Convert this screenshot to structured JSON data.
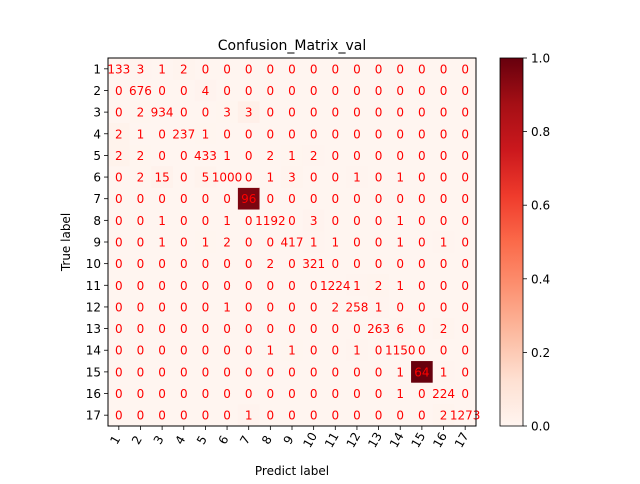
{
  "chart_data": {
    "type": "heatmap",
    "title": "Confusion_Matrix_val",
    "xlabel": "Predict label",
    "ylabel": "True label",
    "labels": [
      "1",
      "2",
      "3",
      "4",
      "5",
      "6",
      "7",
      "8",
      "9",
      "10",
      "11",
      "12",
      "13",
      "14",
      "15",
      "16",
      "17"
    ],
    "matrix": [
      [
        133,
        3,
        1,
        2,
        0,
        0,
        0,
        0,
        0,
        0,
        0,
        0,
        0,
        0,
        0,
        0,
        0
      ],
      [
        0,
        676,
        0,
        0,
        4,
        0,
        0,
        0,
        0,
        0,
        0,
        0,
        0,
        0,
        0,
        0,
        0
      ],
      [
        0,
        2,
        934,
        0,
        0,
        3,
        3,
        0,
        0,
        0,
        0,
        0,
        0,
        0,
        0,
        0,
        0
      ],
      [
        2,
        1,
        0,
        237,
        1,
        0,
        0,
        0,
        0,
        0,
        0,
        0,
        0,
        0,
        0,
        0,
        0
      ],
      [
        2,
        2,
        0,
        0,
        433,
        1,
        0,
        2,
        1,
        2,
        0,
        0,
        0,
        0,
        0,
        0,
        0
      ],
      [
        0,
        2,
        15,
        0,
        5,
        1000,
        0,
        1,
        3,
        0,
        0,
        1,
        0,
        1,
        0,
        0,
        0
      ],
      [
        0,
        0,
        0,
        0,
        0,
        0,
        96,
        0,
        0,
        0,
        0,
        0,
        0,
        0,
        0,
        0,
        0
      ],
      [
        0,
        0,
        1,
        0,
        0,
        1,
        0,
        1192,
        0,
        3,
        0,
        0,
        0,
        1,
        0,
        0,
        0
      ],
      [
        0,
        0,
        1,
        0,
        1,
        2,
        0,
        0,
        417,
        1,
        1,
        0,
        0,
        1,
        0,
        1,
        0
      ],
      [
        0,
        0,
        0,
        0,
        0,
        0,
        0,
        2,
        0,
        321,
        0,
        0,
        0,
        0,
        0,
        0,
        0
      ],
      [
        0,
        0,
        0,
        0,
        0,
        0,
        0,
        0,
        0,
        0,
        1224,
        1,
        2,
        1,
        0,
        0,
        0
      ],
      [
        0,
        0,
        0,
        0,
        0,
        1,
        0,
        0,
        0,
        0,
        2,
        258,
        1,
        0,
        0,
        0,
        0
      ],
      [
        0,
        0,
        0,
        0,
        0,
        0,
        0,
        0,
        0,
        0,
        0,
        0,
        263,
        6,
        0,
        2,
        0
      ],
      [
        0,
        0,
        0,
        0,
        0,
        0,
        0,
        1,
        1,
        0,
        0,
        1,
        0,
        1150,
        0,
        0,
        0
      ],
      [
        0,
        0,
        0,
        0,
        0,
        0,
        0,
        0,
        0,
        0,
        0,
        0,
        0,
        1,
        64,
        1,
        0
      ],
      [
        0,
        0,
        0,
        0,
        0,
        0,
        0,
        0,
        0,
        0,
        0,
        0,
        0,
        1,
        0,
        224,
        0
      ],
      [
        0,
        0,
        0,
        0,
        0,
        0,
        1,
        0,
        0,
        0,
        0,
        0,
        0,
        0,
        0,
        2,
        1273
      ]
    ],
    "colorbar": {
      "min": 0.0,
      "max": 1.0,
      "ticks": [
        "0.0",
        "0.2",
        "0.4",
        "0.6",
        "0.8",
        "1.0"
      ]
    },
    "colormap": "Reds",
    "cell_text_color": "#ff0000"
  }
}
